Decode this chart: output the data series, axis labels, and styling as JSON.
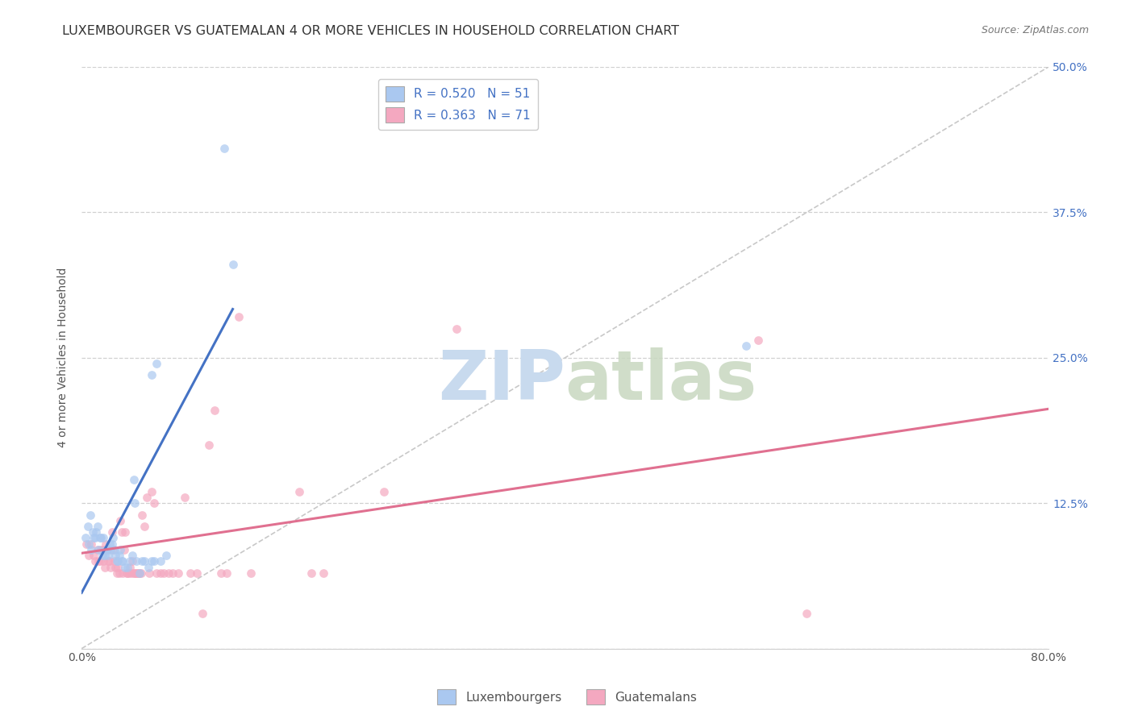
{
  "title": "LUXEMBOURGER VS GUATEMALAN 4 OR MORE VEHICLES IN HOUSEHOLD CORRELATION CHART",
  "source": "Source: ZipAtlas.com",
  "ylabel": "4 or more Vehicles in Household",
  "xlim": [
    0.0,
    0.8
  ],
  "ylim": [
    0.0,
    0.5
  ],
  "xticks": [
    0.0,
    0.2,
    0.4,
    0.6,
    0.8
  ],
  "xticklabels": [
    "0.0%",
    "",
    "",
    "",
    "80.0%"
  ],
  "yticks": [
    0.0,
    0.125,
    0.25,
    0.375,
    0.5
  ],
  "right_yticklabels": [
    "",
    "12.5%",
    "25.0%",
    "37.5%",
    "50.0%"
  ],
  "diagonal_line": {
    "x": [
      0.0,
      0.8
    ],
    "y": [
      0.0,
      0.5
    ],
    "color": "#c8c8c8",
    "linestyle": "dashed"
  },
  "lux_trendline": {
    "x_range": [
      0.0,
      0.125
    ],
    "slope": 1.95,
    "intercept": 0.048,
    "color": "#4472c4",
    "linewidth": 2.2
  },
  "guat_trendline": {
    "x_range": [
      0.0,
      0.8
    ],
    "slope": 0.155,
    "intercept": 0.082,
    "color": "#e07090",
    "linewidth": 2.2
  },
  "lux_points": [
    [
      0.003,
      0.095
    ],
    [
      0.005,
      0.105
    ],
    [
      0.006,
      0.09
    ],
    [
      0.007,
      0.115
    ],
    [
      0.008,
      0.085
    ],
    [
      0.009,
      0.1
    ],
    [
      0.01,
      0.095
    ],
    [
      0.011,
      0.095
    ],
    [
      0.012,
      0.1
    ],
    [
      0.013,
      0.105
    ],
    [
      0.014,
      0.085
    ],
    [
      0.015,
      0.095
    ],
    [
      0.016,
      0.095
    ],
    [
      0.017,
      0.08
    ],
    [
      0.018,
      0.095
    ],
    [
      0.019,
      0.08
    ],
    [
      0.02,
      0.085
    ],
    [
      0.021,
      0.085
    ],
    [
      0.022,
      0.08
    ],
    [
      0.023,
      0.09
    ],
    [
      0.024,
      0.085
    ],
    [
      0.025,
      0.09
    ],
    [
      0.026,
      0.095
    ],
    [
      0.027,
      0.085
    ],
    [
      0.028,
      0.08
    ],
    [
      0.029,
      0.075
    ],
    [
      0.03,
      0.075
    ],
    [
      0.031,
      0.08
    ],
    [
      0.032,
      0.085
    ],
    [
      0.033,
      0.075
    ],
    [
      0.034,
      0.075
    ],
    [
      0.036,
      0.07
    ],
    [
      0.038,
      0.07
    ],
    [
      0.04,
      0.075
    ],
    [
      0.042,
      0.08
    ],
    [
      0.045,
      0.075
    ],
    [
      0.048,
      0.065
    ],
    [
      0.05,
      0.075
    ],
    [
      0.052,
      0.075
    ],
    [
      0.055,
      0.07
    ],
    [
      0.058,
      0.075
    ],
    [
      0.06,
      0.075
    ],
    [
      0.065,
      0.075
    ],
    [
      0.07,
      0.08
    ],
    [
      0.043,
      0.145
    ],
    [
      0.044,
      0.125
    ],
    [
      0.058,
      0.235
    ],
    [
      0.062,
      0.245
    ],
    [
      0.118,
      0.43
    ],
    [
      0.125,
      0.33
    ],
    [
      0.55,
      0.26
    ]
  ],
  "guat_points": [
    [
      0.004,
      0.09
    ],
    [
      0.006,
      0.08
    ],
    [
      0.008,
      0.09
    ],
    [
      0.01,
      0.08
    ],
    [
      0.011,
      0.075
    ],
    [
      0.013,
      0.085
    ],
    [
      0.014,
      0.075
    ],
    [
      0.015,
      0.075
    ],
    [
      0.016,
      0.085
    ],
    [
      0.017,
      0.085
    ],
    [
      0.018,
      0.075
    ],
    [
      0.019,
      0.07
    ],
    [
      0.02,
      0.09
    ],
    [
      0.021,
      0.085
    ],
    [
      0.022,
      0.075
    ],
    [
      0.023,
      0.075
    ],
    [
      0.024,
      0.07
    ],
    [
      0.025,
      0.1
    ],
    [
      0.026,
      0.085
    ],
    [
      0.027,
      0.075
    ],
    [
      0.028,
      0.07
    ],
    [
      0.029,
      0.065
    ],
    [
      0.03,
      0.07
    ],
    [
      0.031,
      0.065
    ],
    [
      0.032,
      0.11
    ],
    [
      0.033,
      0.1
    ],
    [
      0.034,
      0.065
    ],
    [
      0.035,
      0.085
    ],
    [
      0.036,
      0.1
    ],
    [
      0.037,
      0.065
    ],
    [
      0.038,
      0.065
    ],
    [
      0.039,
      0.065
    ],
    [
      0.04,
      0.07
    ],
    [
      0.041,
      0.065
    ],
    [
      0.042,
      0.075
    ],
    [
      0.043,
      0.065
    ],
    [
      0.044,
      0.065
    ],
    [
      0.045,
      0.065
    ],
    [
      0.046,
      0.065
    ],
    [
      0.047,
      0.065
    ],
    [
      0.048,
      0.065
    ],
    [
      0.049,
      0.065
    ],
    [
      0.05,
      0.115
    ],
    [
      0.052,
      0.105
    ],
    [
      0.054,
      0.13
    ],
    [
      0.056,
      0.065
    ],
    [
      0.058,
      0.135
    ],
    [
      0.06,
      0.125
    ],
    [
      0.062,
      0.065
    ],
    [
      0.065,
      0.065
    ],
    [
      0.068,
      0.065
    ],
    [
      0.072,
      0.065
    ],
    [
      0.075,
      0.065
    ],
    [
      0.08,
      0.065
    ],
    [
      0.085,
      0.13
    ],
    [
      0.09,
      0.065
    ],
    [
      0.095,
      0.065
    ],
    [
      0.1,
      0.03
    ],
    [
      0.105,
      0.175
    ],
    [
      0.11,
      0.205
    ],
    [
      0.115,
      0.065
    ],
    [
      0.12,
      0.065
    ],
    [
      0.13,
      0.285
    ],
    [
      0.14,
      0.065
    ],
    [
      0.18,
      0.135
    ],
    [
      0.19,
      0.065
    ],
    [
      0.2,
      0.065
    ],
    [
      0.25,
      0.135
    ],
    [
      0.31,
      0.275
    ],
    [
      0.56,
      0.265
    ],
    [
      0.6,
      0.03
    ]
  ],
  "background_color": "#ffffff",
  "grid_color": "#d0d0d0",
  "scatter_size": 60,
  "lux_scatter_color": "#aac8f0",
  "guat_scatter_color": "#f4a8c0",
  "right_ytick_color": "#4472c4",
  "left_ytick_color": "#333333",
  "title_fontsize": 11.5,
  "axis_label_fontsize": 10,
  "tick_fontsize": 10,
  "legend_R_color": "#4472c4",
  "legend_N_color": "#4472c4"
}
